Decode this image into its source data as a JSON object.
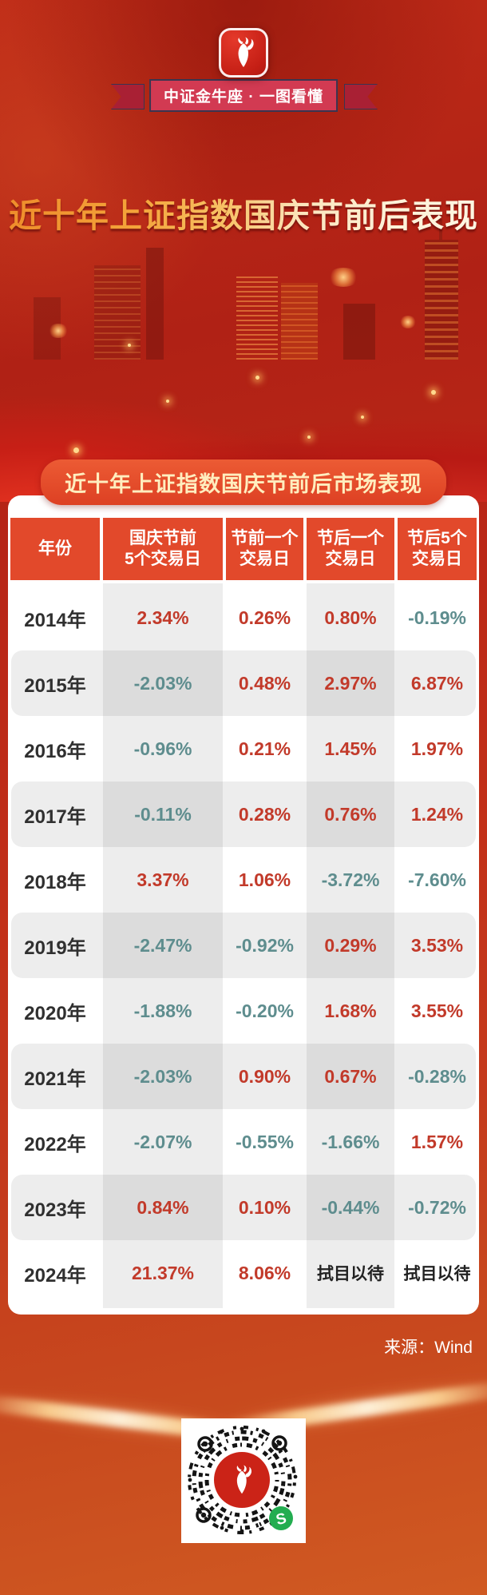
{
  "brand": {
    "badge_label": "中证金牛座 · 一图看懂"
  },
  "title": "近十年上证指数国庆节前后表现",
  "section_banner": "近十年上证指数国庆节前后市场表现",
  "footer": {
    "source": "来源：Wind"
  },
  "colors": {
    "positive": "#c23a2a",
    "negative": "#5e8d8e",
    "neutral": "#222222",
    "header_bg": "#e2492b",
    "banner_text": "#ffeebf",
    "ribbon_bg": "#d23a52"
  },
  "table_display": {
    "header_lines": [
      [
        "年份"
      ],
      [
        "国庆节前",
        "5个交易日"
      ],
      [
        "节前一个",
        "交易日"
      ],
      [
        "节后一个",
        "交易日"
      ],
      [
        "节后5个",
        "交易日"
      ]
    ]
  },
  "chart_data": {
    "type": "table",
    "title": "近十年上证指数国庆节前后市场表现",
    "columns": [
      "年份",
      "国庆节前5个交易日",
      "节前一个交易日",
      "节后一个交易日",
      "节后5个交易日"
    ],
    "rows": [
      [
        "2014年",
        "2.34%",
        "0.26%",
        "0.80%",
        "-0.19%"
      ],
      [
        "2015年",
        "-2.03%",
        "0.48%",
        "2.97%",
        "6.87%"
      ],
      [
        "2016年",
        "-0.96%",
        "0.21%",
        "1.45%",
        "1.97%"
      ],
      [
        "2017年",
        "-0.11%",
        "0.28%",
        "0.76%",
        "1.24%"
      ],
      [
        "2018年",
        "3.37%",
        "1.06%",
        "-3.72%",
        "-7.60%"
      ],
      [
        "2019年",
        "-2.47%",
        "-0.92%",
        "0.29%",
        "3.53%"
      ],
      [
        "2020年",
        "-1.88%",
        "-0.20%",
        "1.68%",
        "3.55%"
      ],
      [
        "2021年",
        "-2.03%",
        "0.90%",
        "0.67%",
        "-0.28%"
      ],
      [
        "2022年",
        "-2.07%",
        "-0.55%",
        "-1.66%",
        "1.57%"
      ],
      [
        "2023年",
        "0.84%",
        "0.10%",
        "-0.44%",
        "-0.72%"
      ],
      [
        "2024年",
        "21.37%",
        "8.06%",
        "拭目以待",
        "拭目以待"
      ]
    ],
    "value_color_rule": "negative values teal, positive values red, text values dark"
  }
}
